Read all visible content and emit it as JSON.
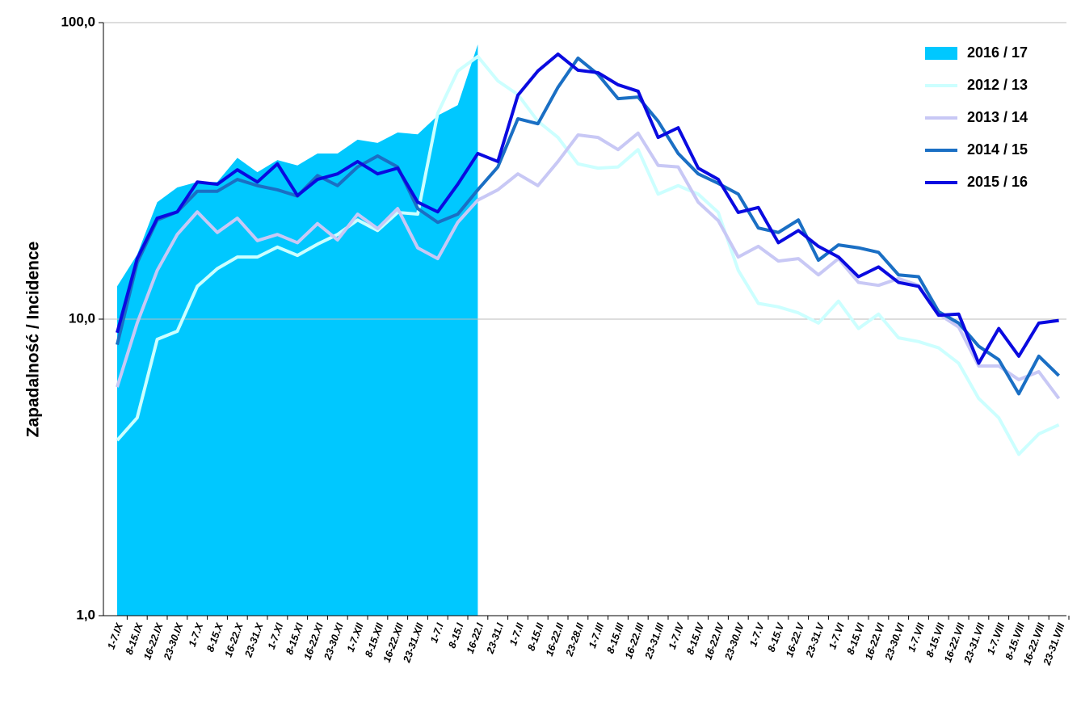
{
  "chart_data": {
    "type": "line",
    "y_label": "Zapadalność  /  Incidence",
    "log_scale": true,
    "grid": true,
    "legend_position": "upper right",
    "categories": [
      "1-7.IX",
      "8-15.IX",
      "16-22.IX",
      "23-30.IX",
      "1-7.X",
      "8-15.X",
      "16-22.X",
      "23-31.X",
      "1-7.XI",
      "8-15.XI",
      "16-22.XI",
      "23-30.XI",
      "1-7.XII",
      "8-15.XII",
      "16-22.XII",
      "23-31.XII",
      "1-7.I",
      "8-15.I",
      "16-22.I",
      "23-31.I",
      "1-7.II",
      "8-15.II",
      "16-22.II",
      "23-28.II",
      "1-7.III",
      "8-15.III",
      "16-22.III",
      "23-31.III",
      "1-7.IV",
      "8-15.IV",
      "16-22.IV",
      "23-30.IV",
      "1-7.V",
      "8-15.V",
      "16-22.V",
      "23-31.V",
      "1-7.VI",
      "8-15.VI",
      "16-22.VI",
      "23-30.VI",
      "1-7.VII",
      "8-15.VII",
      "16-22.VII",
      "23-31.VII",
      "1-7.VIII",
      "8-15.VIII",
      "16-22.VIII",
      "23-31.VIII"
    ],
    "ylim": [
      1,
      100
    ],
    "yticks": [
      {
        "value": 1,
        "label": "1,0"
      },
      {
        "value": 10,
        "label": "10,0"
      },
      {
        "value": 100,
        "label": "100,0"
      }
    ],
    "series": [
      {
        "name": "2016 / 17",
        "type": "area",
        "color": "#00c8ff",
        "values": [
          12.9,
          16.5,
          24.8,
          27.8,
          29,
          29,
          35,
          31.3,
          34.4,
          33,
          36.2,
          36.2,
          40.3,
          39.3,
          42.6,
          42,
          48.6,
          52.7,
          84.4,
          null,
          null,
          null,
          null,
          null,
          null,
          null,
          null,
          null,
          null,
          null,
          null,
          null,
          null,
          null,
          null,
          null,
          null,
          null,
          null,
          null,
          null,
          null,
          null,
          null,
          null,
          null,
          null,
          null
        ]
      },
      {
        "name": "2012 / 13",
        "type": "line",
        "color": "#ccffff",
        "values": [
          3.9,
          4.65,
          8.55,
          9.1,
          12.9,
          14.8,
          16.2,
          16.2,
          17.5,
          16.4,
          17.9,
          19.3,
          21.6,
          19.9,
          22.9,
          22.6,
          49.5,
          68.7,
          76.9,
          63.6,
          57.2,
          46.5,
          41,
          33.4,
          32.3,
          32.6,
          37.3,
          26.4,
          28.2,
          26.4,
          22.9,
          14.6,
          11.3,
          11,
          10.5,
          9.7,
          11.5,
          9.3,
          10.4,
          8.65,
          8.4,
          8,
          7.1,
          5.4,
          4.65,
          3.5,
          4.1,
          4.4
        ]
      },
      {
        "name": "2013 / 14",
        "type": "line",
        "color": "#c8c8f5",
        "values": [
          5.9,
          9.7,
          14.6,
          19.3,
          23,
          19.6,
          21.9,
          18.4,
          19.3,
          18.1,
          21,
          18.5,
          22.6,
          20.2,
          23.6,
          17.4,
          16,
          21.2,
          25.2,
          27.3,
          30.9,
          28.2,
          34,
          41.8,
          41,
          37.3,
          42.4,
          33,
          32.6,
          24.8,
          21.5,
          16.2,
          17.6,
          15.7,
          16,
          14.1,
          16,
          13.3,
          13,
          13.7,
          13,
          10.4,
          9.4,
          6.95,
          6.95,
          6.25,
          6.65,
          5.4
        ]
      },
      {
        "name": "2014 / 15",
        "type": "line",
        "color": "#1a6fc4",
        "values": [
          8.2,
          15.5,
          21.6,
          23,
          27,
          27,
          29.6,
          28.2,
          27.3,
          26,
          30.5,
          28.2,
          32.6,
          35.5,
          32.6,
          23.6,
          21.2,
          22.6,
          27.3,
          32.6,
          47.4,
          45.6,
          60.5,
          75.9,
          66.9,
          55.4,
          56.1,
          46.5,
          36.2,
          30.9,
          28.7,
          26.4,
          20.3,
          19.6,
          21.6,
          15.8,
          17.8,
          17.4,
          16.8,
          14.1,
          13.9,
          10.6,
          9.7,
          8.1,
          7.3,
          5.6,
          7.5,
          6.45
        ]
      },
      {
        "name": "2015 / 16",
        "type": "line",
        "color": "#0a0ae0",
        "values": [
          9,
          16,
          21.9,
          23,
          29,
          28.5,
          31.9,
          29,
          33.4,
          26.1,
          29.6,
          30.9,
          34,
          30.9,
          32.3,
          24.8,
          23,
          28.5,
          36.2,
          34,
          56.9,
          68.7,
          78.3,
          69.1,
          67.8,
          61.7,
          58.7,
          41,
          44.2,
          32.3,
          29.6,
          22.9,
          23.8,
          18.1,
          19.9,
          17.6,
          16.2,
          13.9,
          15,
          13.3,
          12.9,
          10.3,
          10.4,
          7.1,
          9.3,
          7.5,
          9.7,
          9.9
        ]
      }
    ]
  }
}
